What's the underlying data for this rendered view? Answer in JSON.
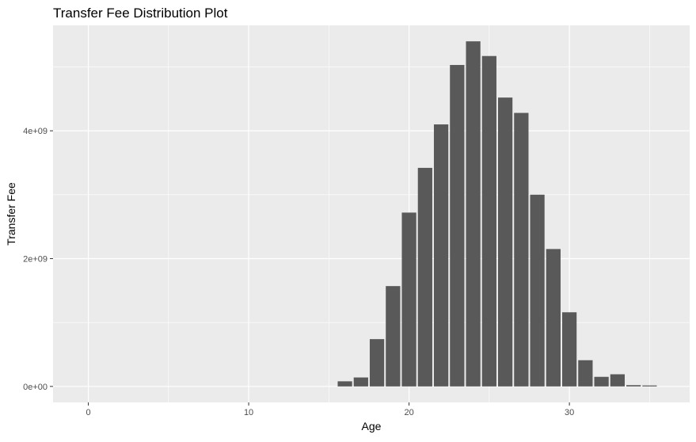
{
  "chart_data": {
    "type": "bar",
    "title": "Transfer Fee Distribution Plot",
    "xlabel": "Age",
    "ylabel": "Transfer Fee",
    "xlim": [
      -2.2,
      37.5
    ],
    "ylim": [
      -250000000,
      5650000000
    ],
    "x_ticks": [
      {
        "value": 0,
        "label": "0"
      },
      {
        "value": 10,
        "label": "10"
      },
      {
        "value": 20,
        "label": "20"
      },
      {
        "value": 30,
        "label": "30"
      }
    ],
    "y_ticks": [
      {
        "value": 0,
        "label": "0e+00"
      },
      {
        "value": 2000000000,
        "label": "2e+09"
      },
      {
        "value": 4000000000,
        "label": "4e+09"
      }
    ],
    "x": [
      16,
      17,
      18,
      19,
      20,
      21,
      22,
      23,
      24,
      25,
      26,
      27,
      28,
      29,
      30,
      31,
      32,
      33,
      34,
      35
    ],
    "values": [
      80000000,
      140000000,
      740000000,
      1570000000,
      2720000000,
      3420000000,
      4100000000,
      5030000000,
      5400000000,
      5170000000,
      4520000000,
      4280000000,
      3000000000,
      2150000000,
      1160000000,
      410000000,
      150000000,
      190000000,
      20000000,
      15000000
    ],
    "bar_color": "#595959",
    "panel_background": "#EBEBEB",
    "grid": true,
    "legend": "none"
  }
}
